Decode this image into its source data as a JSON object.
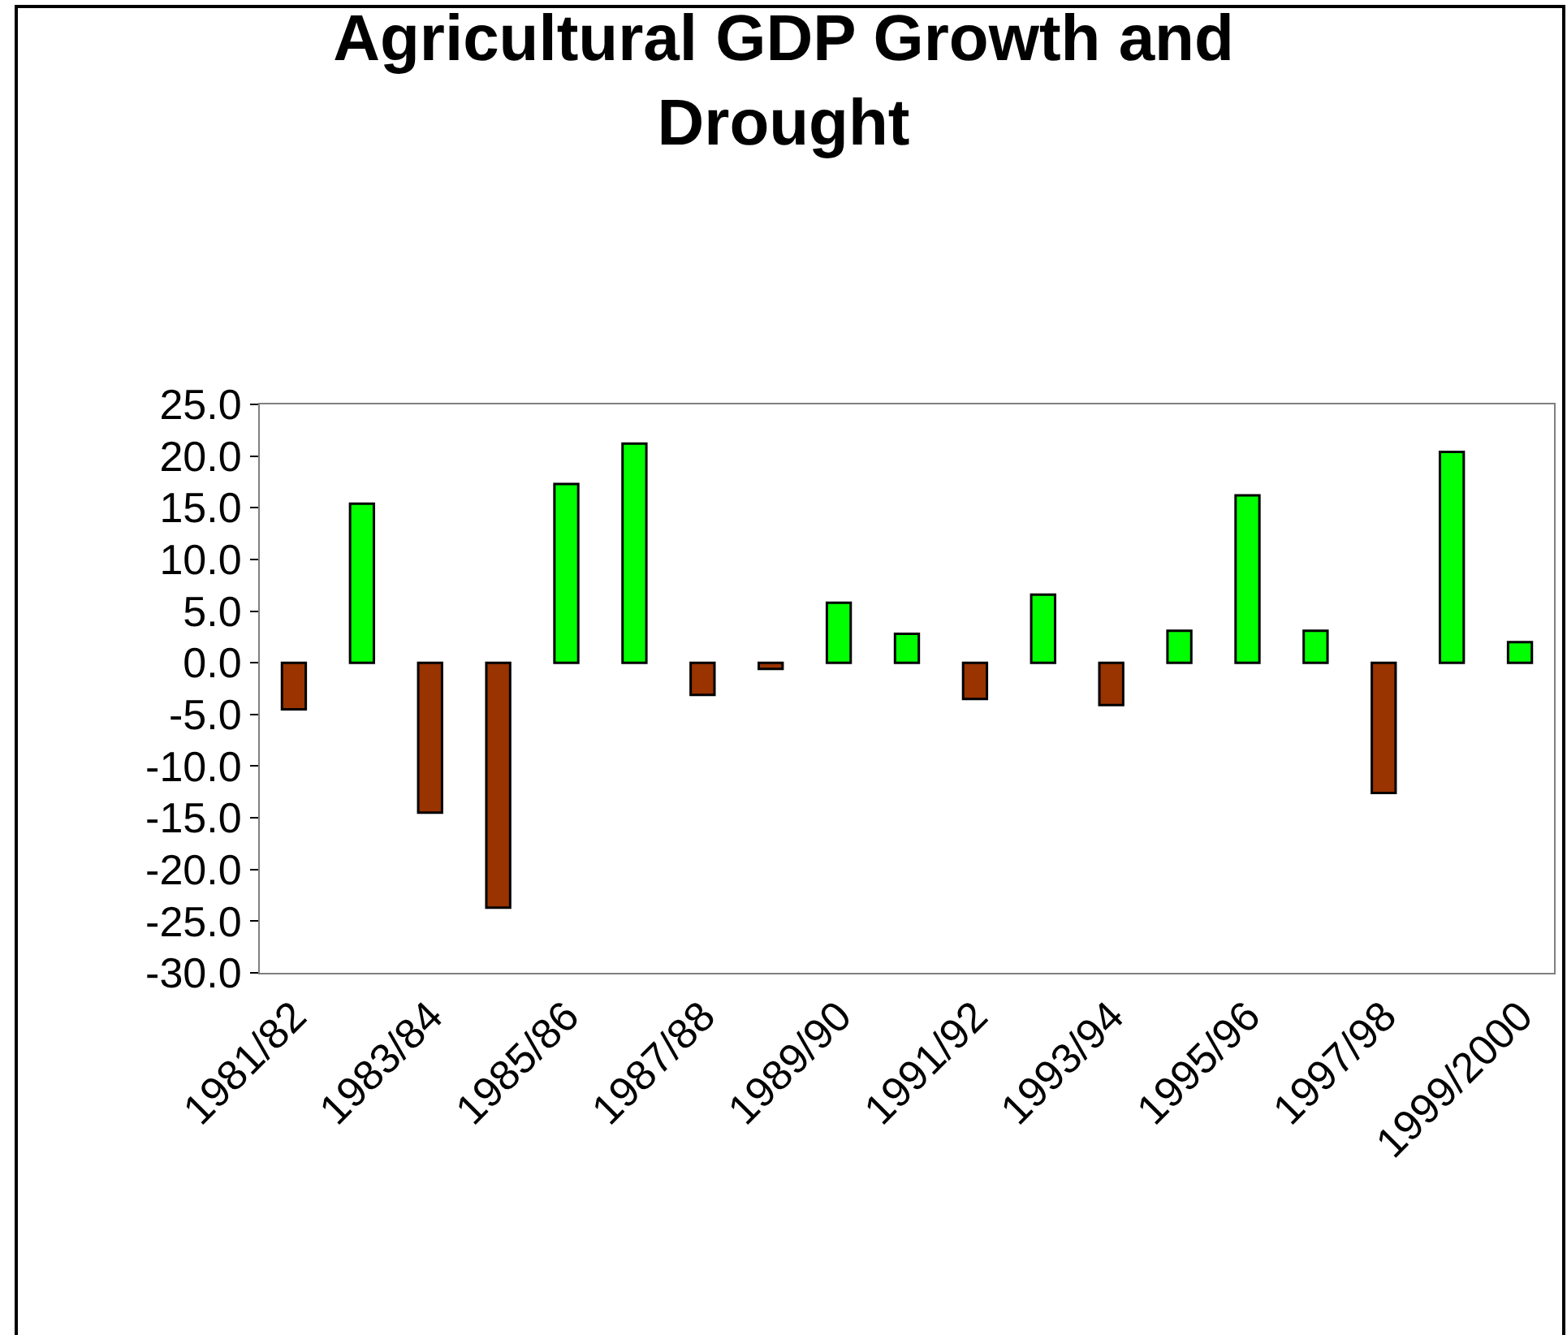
{
  "chart_data": {
    "type": "bar",
    "title": "Agricultural GDP Growth and\nDrought",
    "categories": [
      "1981/82",
      null,
      "1983/84",
      null,
      "1985/86",
      null,
      "1987/88",
      null,
      "1989/90",
      null,
      "1991/92",
      null,
      "1993/94",
      null,
      "1995/96",
      null,
      "1997/98",
      null,
      "1999/2000"
    ],
    "values": [
      -4.5,
      15.4,
      -14.5,
      -23.7,
      17.3,
      21.2,
      -3.1,
      -0.6,
      5.8,
      2.8,
      -3.5,
      6.6,
      -4.1,
      3.1,
      16.2,
      3.1,
      -12.6,
      20.4,
      2.0
    ],
    "colors": [
      "#993300",
      "#00ff00",
      "#993300",
      "#993300",
      "#00ff00",
      "#00ff00",
      "#993300",
      "#993300",
      "#00ff00",
      "#00ff00",
      "#993300",
      "#00ff00",
      "#993300",
      "#00ff00",
      "#00ff00",
      "#00ff00",
      "#993300",
      "#00ff00",
      "#00ff00"
    ],
    "ylim": [
      -30,
      25
    ],
    "yticks": [
      {
        "value": -30,
        "label": "-30.0"
      },
      {
        "value": -25,
        "label": "-25.0"
      },
      {
        "value": -20,
        "label": "-20.0"
      },
      {
        "value": -15,
        "label": "-15.0"
      },
      {
        "value": -10,
        "label": "-10.0"
      },
      {
        "value": -5,
        "label": "-5.0"
      },
      {
        "value": 0,
        "label": "0.0"
      },
      {
        "value": 5,
        "label": "5.0"
      },
      {
        "value": 10,
        "label": "10.0"
      },
      {
        "value": 15,
        "label": "15.0"
      },
      {
        "value": 20,
        "label": "20.0"
      },
      {
        "value": 25,
        "label": "25.0"
      }
    ]
  }
}
